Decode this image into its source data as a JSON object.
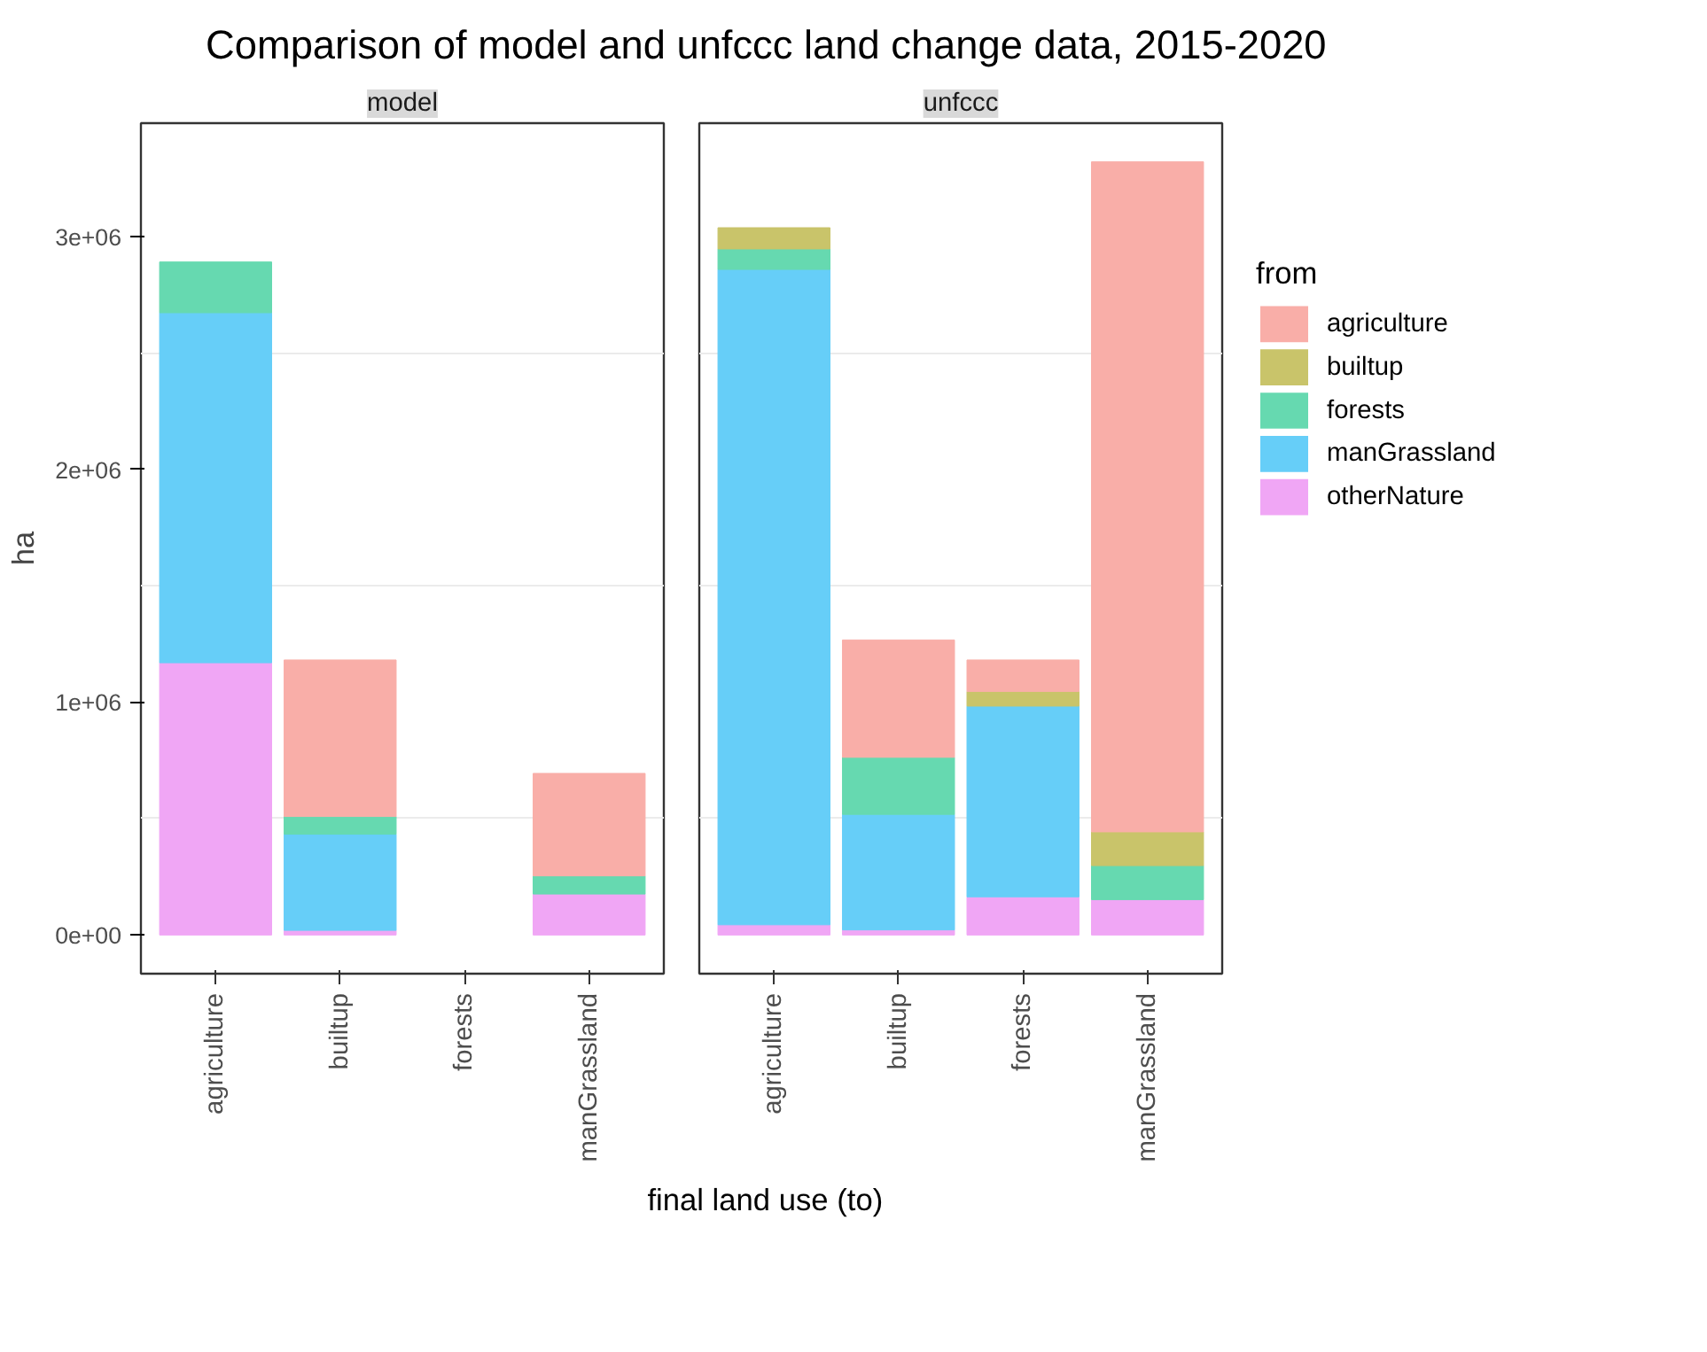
{
  "chart_data": [
    {
      "type": "bar",
      "stacked": true,
      "title": "Comparison of model and unfccc land change data, 2015-2020",
      "subtitle": "model",
      "xlabel": "final land use (to)",
      "ylabel": "ha",
      "categories": [
        "agriculture",
        "builtup",
        "forests",
        "manGrassland"
      ],
      "series": [
        {
          "color": "#f0a6f5",
          "values": [
            1169000,
            20000,
            null,
            176000
          ]
        },
        {
          "color": "#66cef8",
          "values": [
            1503000,
            413000,
            null,
            null
          ]
        },
        {
          "color": "#66d9b0",
          "values": [
            218000,
            76000,
            null,
            78000
          ]
        },
        {
          "color": "#c9c46a",
          "values": [
            null,
            null,
            null,
            null
          ]
        },
        {
          "color": "#f9aea8",
          "values": [
            null,
            672000,
            null,
            440000
          ]
        }
      ],
      "ylim": [
        -166000,
        3486000
      ],
      "yticks": [
        {
          "value": 0,
          "label": "0e+00"
        },
        {
          "value": 500000,
          "label": null
        },
        {
          "value": 1000000,
          "label": "1e+06"
        },
        {
          "value": 1500000,
          "label": null
        },
        {
          "value": 2000000,
          "label": "2e+06"
        },
        {
          "value": 2500000,
          "label": null
        },
        {
          "value": 3000000,
          "label": "3e+06"
        }
      ],
      "grid": "y"
    },
    {
      "type": "bar",
      "stacked": true,
      "subtitle": "unfccc",
      "legend_title": "from",
      "categories": [
        "agriculture",
        "builtup",
        "forests",
        "manGrassland"
      ],
      "series": [
        {
          "name": "otherNature",
          "color": "#f0a6f5",
          "values": [
            44000,
            22000,
            164000,
            152000
          ]
        },
        {
          "name": "manGrassland",
          "color": "#66cef8",
          "values": [
            2814000,
            496000,
            819000,
            null
          ]
        },
        {
          "name": "forests",
          "color": "#66d9b0",
          "values": [
            88000,
            245000,
            null,
            146000
          ]
        },
        {
          "name": "builtup",
          "color": "#c9c46a",
          "values": [
            91000,
            null,
            63000,
            145000
          ]
        },
        {
          "name": "agriculture",
          "color": "#f9aea8",
          "values": [
            null,
            504000,
            135000,
            2877000
          ]
        }
      ],
      "ylim": [
        -166000,
        3486000
      ],
      "yticks": [
        {
          "value": 500000,
          "label": null
        },
        {
          "value": 1500000,
          "label": null
        },
        {
          "value": 2500000,
          "label": null
        }
      ],
      "grid": "y",
      "legend": "right",
      "tick_labels": "x"
    }
  ]
}
